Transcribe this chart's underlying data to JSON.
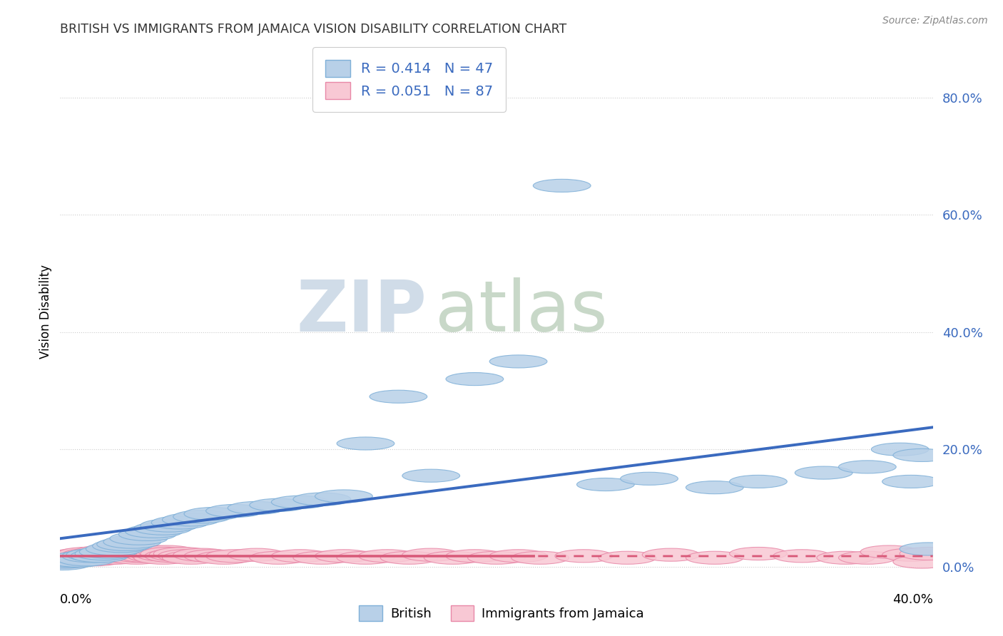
{
  "title": "BRITISH VS IMMIGRANTS FROM JAMAICA VISION DISABILITY CORRELATION CHART",
  "source": "Source: ZipAtlas.com",
  "ylabel": "Vision Disability",
  "y_tick_values": [
    0.0,
    0.2,
    0.4,
    0.6,
    0.8
  ],
  "xlim": [
    0.0,
    0.4
  ],
  "ylim": [
    -0.01,
    0.88
  ],
  "series1_name": "British",
  "series1_color": "#b8d0e8",
  "series1_edge_color": "#7fb0d8",
  "series1_line_color": "#3a6abf",
  "series1_R": 0.414,
  "series1_N": 47,
  "series2_name": "Immigrants from Jamaica",
  "series2_color": "#f8c8d4",
  "series2_edge_color": "#e888a8",
  "series2_line_color": "#d85878",
  "series2_R": 0.051,
  "series2_N": 87,
  "legend_R_color": "#3a6abf",
  "watermark_zip": "ZIP",
  "watermark_atlas": "atlas",
  "british_x": [
    0.001,
    0.002,
    0.004,
    0.006,
    0.008,
    0.01,
    0.012,
    0.014,
    0.016,
    0.018,
    0.02,
    0.022,
    0.025,
    0.028,
    0.03,
    0.033,
    0.036,
    0.04,
    0.043,
    0.047,
    0.05,
    0.055,
    0.06,
    0.065,
    0.07,
    0.08,
    0.09,
    0.1,
    0.11,
    0.12,
    0.13,
    0.14,
    0.155,
    0.17,
    0.19,
    0.21,
    0.23,
    0.25,
    0.27,
    0.3,
    0.32,
    0.35,
    0.37,
    0.385,
    0.39,
    0.395,
    0.398
  ],
  "british_y": [
    0.005,
    0.008,
    0.01,
    0.012,
    0.01,
    0.015,
    0.012,
    0.018,
    0.02,
    0.018,
    0.022,
    0.025,
    0.03,
    0.035,
    0.038,
    0.042,
    0.048,
    0.055,
    0.06,
    0.065,
    0.07,
    0.075,
    0.08,
    0.085,
    0.09,
    0.095,
    0.1,
    0.105,
    0.11,
    0.115,
    0.12,
    0.21,
    0.29,
    0.155,
    0.32,
    0.35,
    0.65,
    0.14,
    0.15,
    0.135,
    0.145,
    0.16,
    0.17,
    0.2,
    0.145,
    0.19,
    0.03
  ],
  "jamaica_x": [
    0.001,
    0.002,
    0.003,
    0.004,
    0.005,
    0.006,
    0.007,
    0.008,
    0.009,
    0.01,
    0.011,
    0.012,
    0.013,
    0.014,
    0.015,
    0.016,
    0.017,
    0.018,
    0.019,
    0.02,
    0.021,
    0.022,
    0.023,
    0.024,
    0.025,
    0.026,
    0.027,
    0.028,
    0.029,
    0.03,
    0.031,
    0.032,
    0.033,
    0.034,
    0.035,
    0.036,
    0.037,
    0.038,
    0.039,
    0.04,
    0.041,
    0.042,
    0.043,
    0.044,
    0.045,
    0.046,
    0.047,
    0.048,
    0.049,
    0.05,
    0.052,
    0.054,
    0.056,
    0.058,
    0.06,
    0.065,
    0.07,
    0.075,
    0.08,
    0.09,
    0.1,
    0.11,
    0.12,
    0.13,
    0.14,
    0.15,
    0.16,
    0.17,
    0.18,
    0.19,
    0.2,
    0.21,
    0.22,
    0.24,
    0.26,
    0.28,
    0.3,
    0.32,
    0.34,
    0.36,
    0.37,
    0.38,
    0.39,
    0.395,
    0.398,
    0.003,
    0.005
  ],
  "jamaica_y": [
    0.01,
    0.012,
    0.008,
    0.015,
    0.01,
    0.012,
    0.018,
    0.015,
    0.02,
    0.018,
    0.015,
    0.022,
    0.018,
    0.02,
    0.015,
    0.012,
    0.018,
    0.015,
    0.02,
    0.025,
    0.018,
    0.015,
    0.022,
    0.018,
    0.015,
    0.022,
    0.02,
    0.018,
    0.022,
    0.02,
    0.025,
    0.022,
    0.02,
    0.018,
    0.015,
    0.022,
    0.018,
    0.025,
    0.02,
    0.018,
    0.022,
    0.025,
    0.02,
    0.018,
    0.022,
    0.018,
    0.015,
    0.02,
    0.025,
    0.022,
    0.018,
    0.02,
    0.022,
    0.018,
    0.015,
    0.02,
    0.018,
    0.015,
    0.018,
    0.02,
    0.015,
    0.018,
    0.015,
    0.018,
    0.015,
    0.018,
    0.015,
    0.02,
    0.015,
    0.018,
    0.015,
    0.018,
    0.015,
    0.018,
    0.015,
    0.02,
    0.015,
    0.022,
    0.018,
    0.015,
    0.015,
    0.025,
    0.02,
    0.008,
    0.022,
    0.01,
    0.012
  ]
}
